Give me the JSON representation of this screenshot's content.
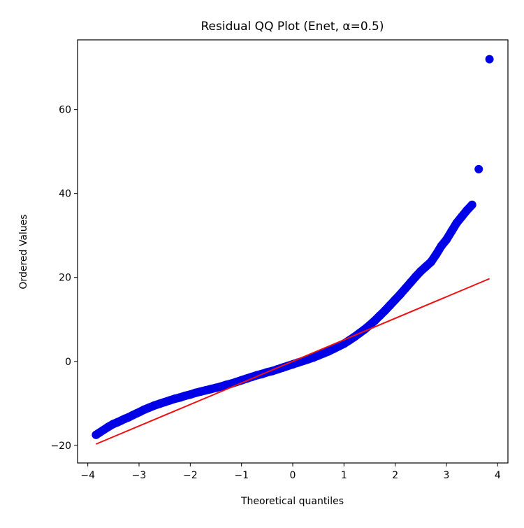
{
  "chart_data": {
    "type": "scatter",
    "title": "Residual QQ Plot (Enet, α=0.5)",
    "xlabel": "Theoretical quantiles",
    "ylabel": "Ordered Values",
    "xlim": [
      -4.2,
      4.2
    ],
    "ylim": [
      -24.2,
      76.6
    ],
    "xticks": [
      -4,
      -3,
      -2,
      -1,
      0,
      1,
      2,
      3,
      4
    ],
    "xtick_labels": [
      "−4",
      "−3",
      "−2",
      "−1",
      "0",
      "1",
      "2",
      "3",
      "4"
    ],
    "yticks": [
      -20,
      0,
      20,
      40,
      60
    ],
    "ytick_labels": [
      "−20",
      "0",
      "20",
      "40",
      "60"
    ],
    "grid": false,
    "legend": "none",
    "colors": {
      "points": "#0000e6",
      "fit_line": "#ee1111"
    },
    "points": [
      [
        -3.84,
        -17.5
      ],
      [
        -3.6,
        -15.6
      ],
      [
        -3.5,
        -14.9
      ],
      [
        -3.42,
        -14.5
      ],
      [
        -3.35,
        -14.1
      ],
      [
        -3.28,
        -13.7
      ],
      [
        -3.2,
        -13.3
      ],
      [
        -3.12,
        -12.8
      ],
      [
        -3.05,
        -12.4
      ],
      [
        -2.98,
        -12.0
      ],
      [
        -2.9,
        -11.5
      ],
      [
        -2.8,
        -11.0
      ],
      [
        -2.7,
        -10.5
      ],
      [
        -2.6,
        -10.1
      ],
      [
        -2.5,
        -9.7
      ],
      [
        -2.4,
        -9.3
      ],
      [
        -2.3,
        -8.9
      ],
      [
        -2.2,
        -8.6
      ],
      [
        -2.1,
        -8.2
      ],
      [
        -2.0,
        -7.9
      ],
      [
        -1.9,
        -7.5
      ],
      [
        -1.8,
        -7.2
      ],
      [
        -1.7,
        -6.9
      ],
      [
        -1.6,
        -6.6
      ],
      [
        -1.5,
        -6.3
      ],
      [
        -1.4,
        -6.0
      ],
      [
        -1.3,
        -5.6
      ],
      [
        -1.2,
        -5.3
      ],
      [
        -1.1,
        -4.9
      ],
      [
        -1.0,
        -4.5
      ],
      [
        -0.9,
        -4.1
      ],
      [
        -0.8,
        -3.7
      ],
      [
        -0.7,
        -3.3
      ],
      [
        -0.6,
        -3.0
      ],
      [
        -0.5,
        -2.6
      ],
      [
        -0.4,
        -2.3
      ],
      [
        -0.3,
        -1.9
      ],
      [
        -0.2,
        -1.5
      ],
      [
        -0.1,
        -1.1
      ],
      [
        0.0,
        -0.7
      ],
      [
        0.1,
        -0.3
      ],
      [
        0.2,
        0.1
      ],
      [
        0.3,
        0.5
      ],
      [
        0.4,
        0.9
      ],
      [
        0.5,
        1.4
      ],
      [
        0.6,
        1.9
      ],
      [
        0.7,
        2.4
      ],
      [
        0.8,
        3.0
      ],
      [
        0.9,
        3.6
      ],
      [
        1.0,
        4.2
      ],
      [
        1.1,
        5.0
      ],
      [
        1.2,
        5.8
      ],
      [
        1.3,
        6.7
      ],
      [
        1.4,
        7.6
      ],
      [
        1.5,
        8.6
      ],
      [
        1.6,
        9.7
      ],
      [
        1.7,
        10.9
      ],
      [
        1.8,
        12.1
      ],
      [
        1.9,
        13.4
      ],
      [
        2.0,
        14.7
      ],
      [
        2.1,
        16.0
      ],
      [
        2.2,
        17.4
      ],
      [
        2.3,
        18.8
      ],
      [
        2.4,
        20.2
      ],
      [
        2.5,
        21.5
      ],
      [
        2.6,
        22.6
      ],
      [
        2.7,
        23.7
      ],
      [
        2.8,
        25.5
      ],
      [
        2.9,
        27.5
      ],
      [
        3.0,
        29.0
      ],
      [
        3.1,
        31.0
      ],
      [
        3.2,
        33.0
      ],
      [
        3.3,
        34.5
      ],
      [
        3.4,
        36.0
      ],
      [
        3.5,
        37.3
      ],
      [
        3.63,
        45.8
      ],
      [
        3.84,
        72.0
      ]
    ],
    "fit_line": {
      "x": [
        -3.84,
        3.84
      ],
      "y": [
        -19.7,
        19.7
      ]
    }
  }
}
